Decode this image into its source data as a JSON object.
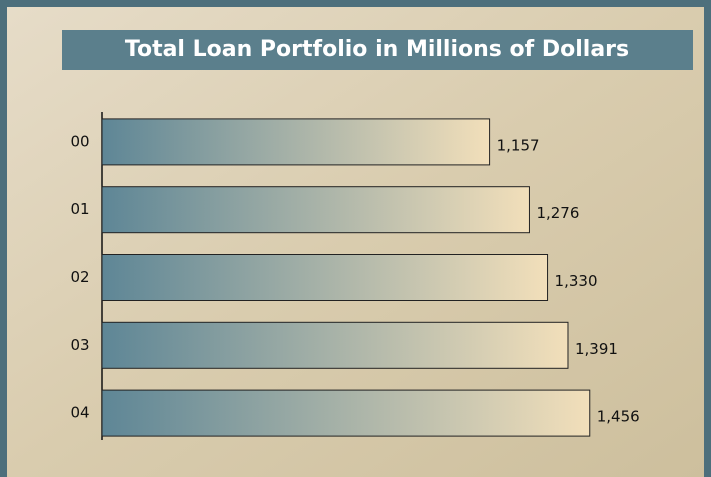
{
  "chart_data": {
    "type": "hbar",
    "title": "Total Loan Portfolio in Millions of Dollars",
    "categories": [
      "00",
      "01",
      "02",
      "03",
      "04"
    ],
    "values": [
      1157,
      1276,
      1330,
      1391,
      1456
    ],
    "value_labels": [
      "1,157",
      "1,276",
      "1,330",
      "1,391",
      "1,456"
    ],
    "xlim": [
      0,
      1800
    ],
    "color": [
      "#5e8696",
      "#f2dfba"
    ]
  }
}
